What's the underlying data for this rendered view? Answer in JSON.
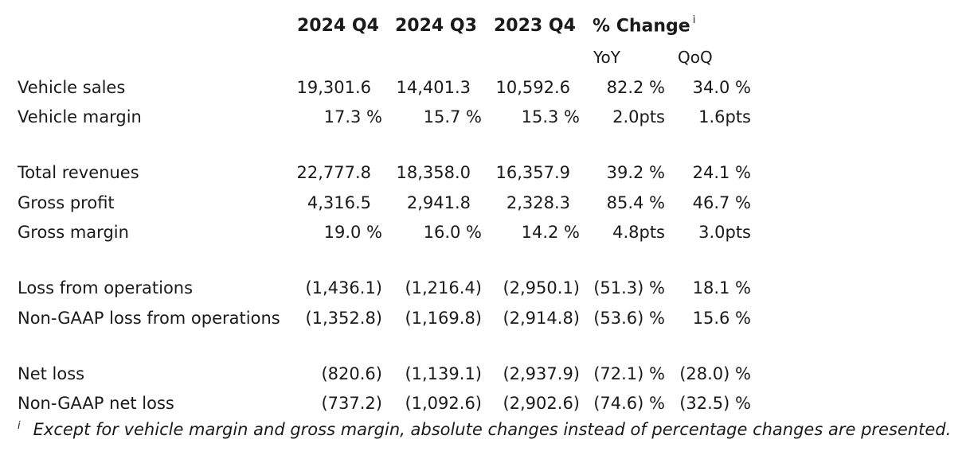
{
  "header": {
    "col1": "2024 Q4",
    "col2": "2024 Q3",
    "col3": "2023 Q4",
    "change": "% Change",
    "change_mark": "i",
    "yoy": "YoY",
    "qoq": "QoQ"
  },
  "rows": [
    {
      "label": "Vehicle sales",
      "v1": "19,301.6",
      "v2": "14,401.3",
      "v3": "10,592.6",
      "yoy": "82.2 %",
      "qoq": "34.0 %"
    },
    {
      "label": "Vehicle margin",
      "v1": "17.3 %",
      "v2": "15.7 %",
      "v3": "15.3 %",
      "yoy": "2.0pts",
      "qoq": "1.6pts"
    },
    {
      "label": "Total revenues",
      "v1": "22,777.8",
      "v2": "18,358.0",
      "v3": "16,357.9",
      "yoy": "39.2 %",
      "qoq": "24.1 %"
    },
    {
      "label": "Gross profit",
      "v1": "4,316.5",
      "v2": "2,941.8",
      "v3": "2,328.3",
      "yoy": "85.4 %",
      "qoq": "46.7 %"
    },
    {
      "label": "Gross margin",
      "v1": "19.0 %",
      "v2": "16.0 %",
      "v3": "14.2 %",
      "yoy": "4.8pts",
      "qoq": "3.0pts"
    },
    {
      "label": "Loss from operations",
      "v1": "(1,436.1)",
      "v2": "(1,216.4)",
      "v3": "(2,950.1)",
      "yoy": "(51.3) %",
      "qoq": "18.1 %"
    },
    {
      "label": "Non-GAAP loss from operations",
      "v1": "(1,352.8)",
      "v2": "(1,169.8)",
      "v3": "(2,914.8)",
      "yoy": "(53.6) %",
      "qoq": "15.6 %"
    },
    {
      "label": "Net loss",
      "v1": "(820.6)",
      "v2": "(1,139.1)",
      "v3": "(2,937.9)",
      "yoy": "(72.1) %",
      "qoq": "(28.0) %"
    },
    {
      "label": "Non-GAAP net loss",
      "v1": "(737.2)",
      "v2": "(1,092.6)",
      "v3": "(2,902.6)",
      "yoy": "(74.6) %",
      "qoq": "(32.5) %"
    }
  ],
  "footnote": {
    "mark": "i",
    "text": "Except for vehicle margin and gross margin, absolute changes instead of percentage changes are presented."
  }
}
